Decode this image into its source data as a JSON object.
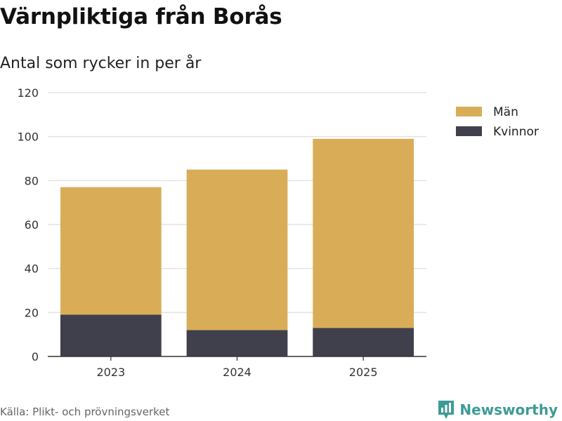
{
  "title": "Värnpliktiga från Borås",
  "subtitle": "Antal som rycker in per år",
  "source": "Källa: Plikt- och prövningsverket",
  "brand": "Newsworthy",
  "colors": {
    "man": "#d9ad58",
    "kvinnor": "#403f4c",
    "grid": "#e3e3e3",
    "axis": "#333333",
    "brand": "#3d9b95"
  },
  "chart_data": {
    "type": "bar",
    "stacked": true,
    "categories": [
      "2023",
      "2024",
      "2025"
    ],
    "series": [
      {
        "name": "Kvinnor",
        "values": [
          19,
          12,
          13
        ]
      },
      {
        "name": "Män",
        "values": [
          58,
          73,
          86
        ]
      }
    ],
    "legend": [
      "Män",
      "Kvinnor"
    ],
    "ylim": [
      0,
      120
    ],
    "yticks": [
      0,
      20,
      40,
      60,
      80,
      100,
      120
    ],
    "grid": true,
    "legend_position": "top-right"
  }
}
